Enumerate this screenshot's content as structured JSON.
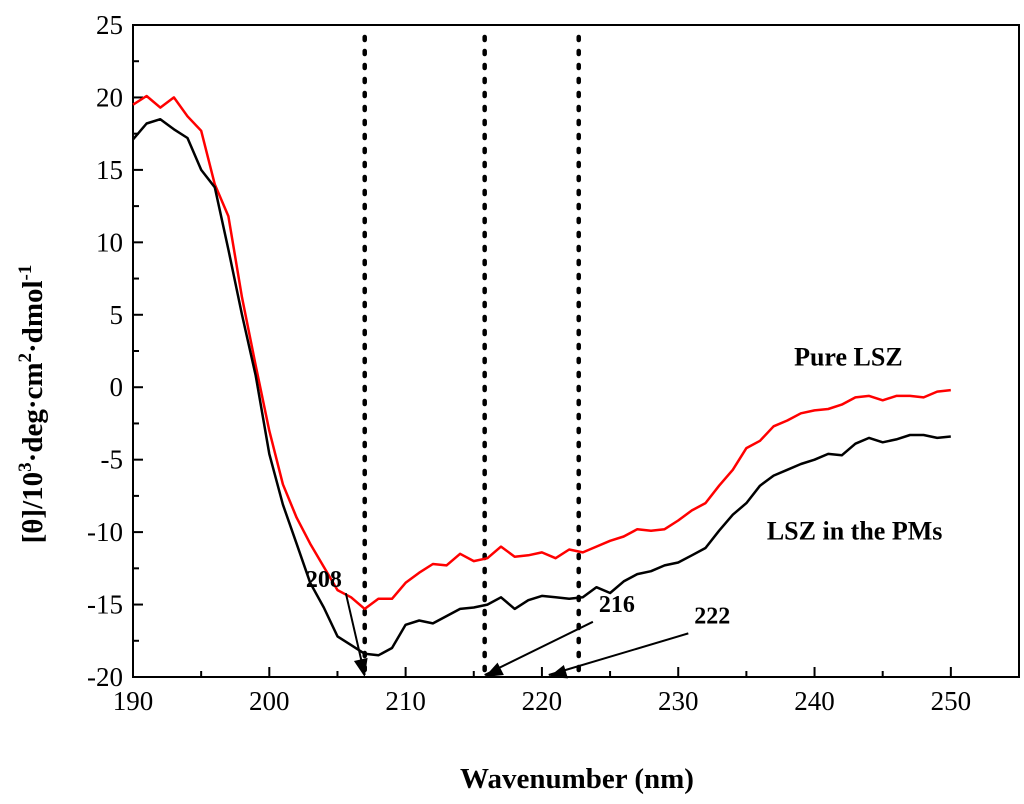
{
  "chart_data": {
    "type": "line",
    "title": "",
    "xlabel": "Wavenumber (nm)",
    "ylabel_main": "[θ]/10",
    "ylabel_exp1": "3",
    "ylabel_mid": "·deg·cm",
    "ylabel_exp2": "2",
    "ylabel_mid2": "·dmol",
    "ylabel_exp3": "-1",
    "xlim": [
      190,
      255
    ],
    "ylim": [
      -20,
      25
    ],
    "xticks": [
      190,
      200,
      210,
      220,
      230,
      240,
      250
    ],
    "yticks": [
      -20,
      -15,
      -10,
      -5,
      0,
      5,
      10,
      15,
      20,
      25
    ],
    "x": [
      190,
      191,
      192,
      193,
      194,
      195,
      196,
      197,
      198,
      199,
      200,
      201,
      202,
      203,
      204,
      205,
      206,
      207,
      208,
      209,
      210,
      211,
      212,
      213,
      214,
      215,
      216,
      217,
      218,
      219,
      220,
      221,
      222,
      223,
      224,
      225,
      226,
      227,
      228,
      229,
      230,
      231,
      232,
      233,
      234,
      235,
      236,
      237,
      238,
      239,
      240,
      241,
      242,
      243,
      244,
      245,
      246,
      247,
      248,
      249,
      250
    ],
    "series": [
      {
        "name": "Pure LSZ",
        "color": "#ff0000",
        "values": [
          19.5,
          20.1,
          19.3,
          20.0,
          18.7,
          17.7,
          14.0,
          11.8,
          6.2,
          1.5,
          -3.0,
          -6.7,
          -9.0,
          -10.8,
          -12.4,
          -14.0,
          -14.5,
          -15.3,
          -14.6,
          -14.6,
          -13.5,
          -12.8,
          -12.2,
          -12.3,
          -11.5,
          -12.0,
          -11.8,
          -11.0,
          -11.7,
          -11.6,
          -11.4,
          -11.8,
          -11.2,
          -11.4,
          -11.0,
          -10.6,
          -10.3,
          -9.8,
          -9.9,
          -9.8,
          -9.2,
          -8.5,
          -8.0,
          -6.8,
          -5.7,
          -4.2,
          -3.7,
          -2.7,
          -2.3,
          -1.8,
          -1.6,
          -1.5,
          -1.2,
          -0.7,
          -0.6,
          -0.9,
          -0.6,
          -0.6,
          -0.7,
          -0.3,
          -0.2
        ]
      },
      {
        "name": "LSZ in the PMs",
        "color": "#000000",
        "values": [
          17.1,
          18.2,
          18.5,
          17.8,
          17.2,
          15.0,
          13.8,
          9.5,
          5.0,
          0.8,
          -4.6,
          -8.1,
          -10.8,
          -13.5,
          -15.2,
          -17.2,
          -17.8,
          -18.4,
          -18.5,
          -18.0,
          -16.4,
          -16.1,
          -16.3,
          -15.8,
          -15.3,
          -15.2,
          -15.0,
          -14.5,
          -15.3,
          -14.7,
          -14.4,
          -14.5,
          -14.6,
          -14.5,
          -13.8,
          -14.2,
          -13.4,
          -12.9,
          -12.7,
          -12.3,
          -12.1,
          -11.6,
          -11.1,
          -9.9,
          -8.8,
          -8.0,
          -6.8,
          -6.1,
          -5.7,
          -5.3,
          -5.0,
          -4.6,
          -4.7,
          -3.9,
          -3.5,
          -3.8,
          -3.6,
          -3.3,
          -3.3,
          -3.5,
          -3.4
        ]
      }
    ],
    "vlines": [
      207,
      215.8,
      222.7
    ],
    "annotations": [
      {
        "text": "208",
        "label_x": 204,
        "label_y": -13.8,
        "head_x": 207,
        "head_y": -20
      },
      {
        "text": "216",
        "label_x": 225.5,
        "label_y": -15.5,
        "head_x": 215.8,
        "head_y": -20
      },
      {
        "text": "222",
        "label_x": 232.5,
        "label_y": -16.3,
        "head_x": 220.5,
        "head_y": -20
      }
    ],
    "series_labels": [
      {
        "text": "Pure LSZ",
        "at_x": 238.5,
        "at_y": 1.5
      },
      {
        "text": "LSZ in the PMs",
        "at_x": 236.5,
        "at_y": -10.5
      }
    ],
    "grid": false,
    "legend": "none"
  }
}
